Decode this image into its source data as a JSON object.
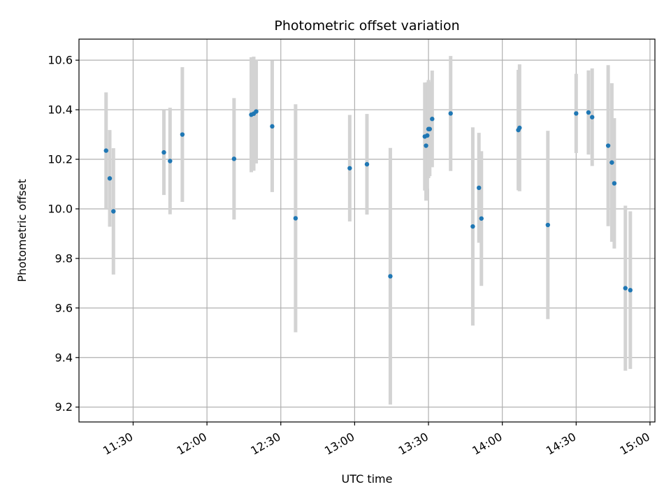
{
  "chart_data": {
    "type": "scatter",
    "title": "Photometric offset variation",
    "xlabel": "UTC time",
    "ylabel": "Photometric offset",
    "xlim": [
      "11:08",
      "15:02"
    ],
    "ylim": [
      9.14,
      10.685
    ],
    "x_ticks": [
      "11:30",
      "12:00",
      "12:30",
      "13:00",
      "13:30",
      "14:00",
      "14:30",
      "15:00"
    ],
    "y_ticks": [
      "9.2",
      "9.4",
      "9.6",
      "9.8",
      "10.0",
      "10.2",
      "10.4",
      "10.6"
    ],
    "grid": true,
    "marker_color": "#1f77b4",
    "errorbar_color": "#d3d3d3",
    "points": [
      {
        "x": "11:19:00",
        "y": 10.235,
        "err": 0.235
      },
      {
        "x": "11:20:30",
        "y": 10.123,
        "err": 0.195
      },
      {
        "x": "11:22:00",
        "y": 9.99,
        "err": 0.255
      },
      {
        "x": "11:42:30",
        "y": 10.228,
        "err": 0.172
      },
      {
        "x": "11:45:00",
        "y": 10.193,
        "err": 0.215
      },
      {
        "x": "11:50:00",
        "y": 10.3,
        "err": 0.272
      },
      {
        "x": "12:11:00",
        "y": 10.202,
        "err": 0.245
      },
      {
        "x": "12:18:00",
        "y": 10.38,
        "err": 0.232
      },
      {
        "x": "12:19:00",
        "y": 10.384,
        "err": 0.23
      },
      {
        "x": "12:20:00",
        "y": 10.393,
        "err": 0.21
      },
      {
        "x": "12:26:30",
        "y": 10.333,
        "err": 0.265
      },
      {
        "x": "12:36:00",
        "y": 9.962,
        "err": 0.46
      },
      {
        "x": "12:58:00",
        "y": 10.164,
        "err": 0.215
      },
      {
        "x": "13:05:00",
        "y": 10.18,
        "err": 0.203
      },
      {
        "x": "13:14:30",
        "y": 9.728,
        "err": 0.518
      },
      {
        "x": "13:28:30",
        "y": 10.292,
        "err": 0.218
      },
      {
        "x": "13:29:00",
        "y": 10.255,
        "err": 0.222
      },
      {
        "x": "13:29:30",
        "y": 10.296,
        "err": 0.215
      },
      {
        "x": "13:30:00",
        "y": 10.322,
        "err": 0.198
      },
      {
        "x": "13:30:30",
        "y": 10.322,
        "err": 0.19
      },
      {
        "x": "13:31:30",
        "y": 10.363,
        "err": 0.195
      },
      {
        "x": "13:39:00",
        "y": 10.385,
        "err": 0.232
      },
      {
        "x": "13:48:00",
        "y": 9.929,
        "err": 0.4
      },
      {
        "x": "13:50:30",
        "y": 10.085,
        "err": 0.222
      },
      {
        "x": "13:51:30",
        "y": 9.961,
        "err": 0.272
      },
      {
        "x": "14:06:30",
        "y": 10.318,
        "err": 0.243
      },
      {
        "x": "14:07:00",
        "y": 10.327,
        "err": 0.256
      },
      {
        "x": "14:18:30",
        "y": 9.935,
        "err": 0.38
      },
      {
        "x": "14:30:00",
        "y": 10.385,
        "err": 0.16
      },
      {
        "x": "14:35:00",
        "y": 10.389,
        "err": 0.17
      },
      {
        "x": "14:36:30",
        "y": 10.37,
        "err": 0.197
      },
      {
        "x": "14:43:00",
        "y": 10.255,
        "err": 0.325
      },
      {
        "x": "14:44:30",
        "y": 10.187,
        "err": 0.32
      },
      {
        "x": "14:45:30",
        "y": 10.103,
        "err": 0.263
      },
      {
        "x": "14:50:00",
        "y": 9.68,
        "err": 0.333
      },
      {
        "x": "14:52:00",
        "y": 9.672,
        "err": 0.318
      }
    ]
  }
}
